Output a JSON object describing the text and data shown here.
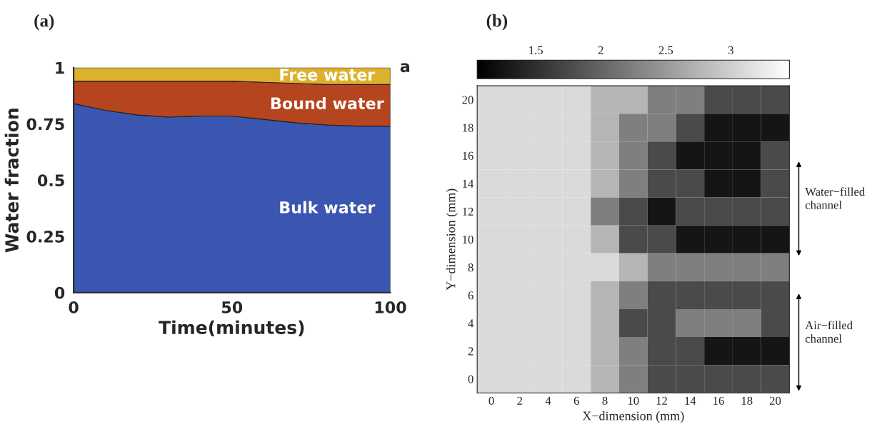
{
  "chart_data": [
    {
      "type": "area",
      "title": "(a)",
      "xlabel": "Time(minutes)",
      "ylabel": "Water fraction",
      "stacked": true,
      "x": [
        0,
        10,
        20,
        30,
        40,
        50,
        60,
        70,
        80,
        90,
        100
      ],
      "series": [
        {
          "name": "Bulk water",
          "color": "#3a56b0",
          "values": [
            0.84,
            0.81,
            0.79,
            0.78,
            0.785,
            0.785,
            0.77,
            0.755,
            0.745,
            0.74,
            0.74
          ]
        },
        {
          "name": "Bound water",
          "color": "#b5451f",
          "values": [
            0.1,
            0.13,
            0.15,
            0.16,
            0.155,
            0.155,
            0.165,
            0.175,
            0.18,
            0.185,
            0.185
          ]
        },
        {
          "name": "Free water",
          "color": "#dcb12e",
          "values": [
            0.06,
            0.06,
            0.06,
            0.06,
            0.06,
            0.06,
            0.065,
            0.07,
            0.075,
            0.075,
            0.075
          ]
        }
      ],
      "xlim": [
        0,
        100
      ],
      "xticks": [
        0,
        50,
        100
      ],
      "ylim": [
        0,
        1
      ],
      "yticks": [
        0,
        0.25,
        0.5,
        0.75,
        1
      ],
      "annotations": [
        "a"
      ]
    },
    {
      "type": "heatmap",
      "title": "(b)",
      "xlabel": "X−dimension (mm)",
      "ylabel": "Y−dimension (mm)",
      "categories": [
        "0",
        "2",
        "4",
        "6",
        "8",
        "10",
        "12",
        "14",
        "16",
        "18",
        "20"
      ],
      "y_categories": [
        "20",
        "18",
        "16",
        "14",
        "12",
        "10",
        "8",
        "6",
        "4",
        "2",
        "0"
      ],
      "clim": [
        1.05,
        3.45
      ],
      "cticks": [
        1.5,
        2,
        2.5,
        3
      ],
      "cells": [
        [
          3.1,
          3.1,
          3.1,
          3.1,
          2.75,
          2.75,
          2.25,
          2.25,
          1.75,
          1.75,
          1.75
        ],
        [
          3.1,
          3.1,
          3.1,
          3.1,
          2.75,
          2.25,
          2.25,
          1.75,
          1.25,
          1.25,
          1.25
        ],
        [
          3.1,
          3.1,
          3.1,
          3.1,
          2.75,
          2.25,
          1.75,
          1.25,
          1.25,
          1.25,
          1.75
        ],
        [
          3.1,
          3.1,
          3.1,
          3.1,
          2.75,
          2.25,
          1.75,
          1.75,
          1.25,
          1.25,
          1.75
        ],
        [
          3.1,
          3.1,
          3.1,
          3.1,
          2.25,
          1.75,
          1.25,
          1.75,
          1.75,
          1.75,
          1.75
        ],
        [
          3.1,
          3.1,
          3.1,
          3.1,
          2.75,
          1.75,
          1.75,
          1.25,
          1.25,
          1.25,
          1.25
        ],
        [
          3.1,
          3.1,
          3.1,
          3.1,
          3.1,
          2.75,
          2.25,
          2.25,
          2.25,
          2.25,
          2.25
        ],
        [
          3.1,
          3.1,
          3.1,
          3.1,
          2.75,
          2.25,
          1.75,
          1.75,
          1.75,
          1.75,
          1.75
        ],
        [
          3.1,
          3.1,
          3.1,
          3.1,
          2.75,
          1.75,
          1.75,
          2.25,
          2.25,
          2.25,
          1.75
        ],
        [
          3.1,
          3.1,
          3.1,
          3.1,
          2.75,
          2.25,
          1.75,
          1.75,
          1.25,
          1.25,
          1.25
        ],
        [
          3.1,
          3.1,
          3.1,
          3.1,
          2.75,
          2.25,
          1.75,
          1.75,
          1.75,
          1.75,
          1.75
        ]
      ],
      "annotations": [
        "Water−filled\nchannel",
        "Air−filled\nchannel"
      ]
    }
  ]
}
